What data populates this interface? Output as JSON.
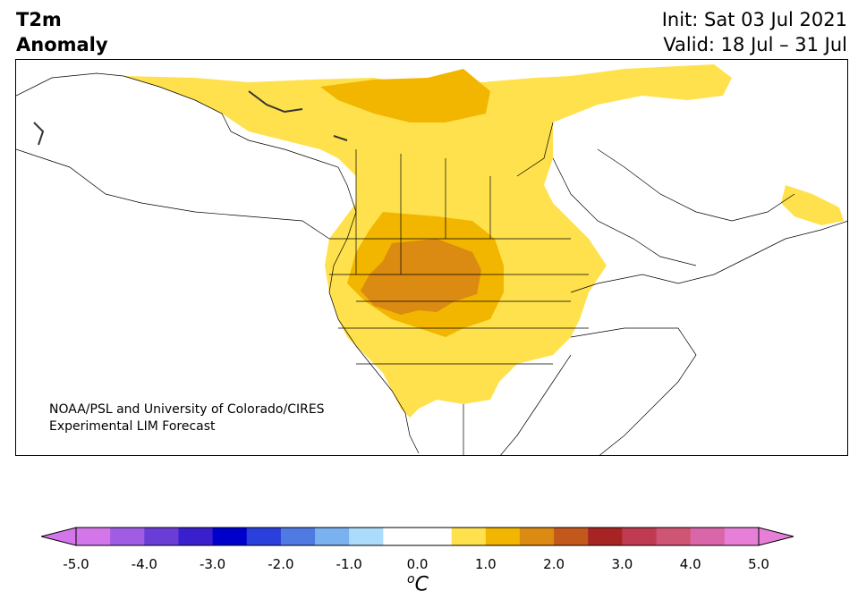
{
  "title": {
    "line1": "T2m",
    "line2": "Anomaly"
  },
  "init": {
    "line1": "Init: Sat 03 Jul 2021",
    "line2": "Valid: 18 Jul – 31 Jul"
  },
  "credit": {
    "line1": "NOAA/PSL and University of Colorado/CIRES",
    "line2": "Experimental LIM Forecast"
  },
  "colorbar": {
    "unit_prefix": "o",
    "unit": "C",
    "ticks": [
      "-5.0",
      "-4.0",
      "-3.0",
      "-2.0",
      "-1.0",
      "0.0",
      "1.0",
      "2.0",
      "3.0",
      "4.0",
      "5.0"
    ],
    "colors": [
      "#d276e9",
      "#a05ce3",
      "#6a3dd6",
      "#3a1fcc",
      "#0000cc",
      "#2a3fdb",
      "#4e7ae2",
      "#79b2ee",
      "#acdcfb",
      "#ffffff",
      "#ffffff",
      "#ffe14d",
      "#f2b500",
      "#db8a12",
      "#c2581c",
      "#a82424",
      "#c03b52",
      "#cf5575",
      "#d966a8",
      "#e77fd8"
    ],
    "under_color": "#d276e9",
    "over_color": "#e77fd8"
  },
  "map": {
    "region": "North America",
    "field": "2m temperature anomaly",
    "colors": {
      "anom_0_5_1": "#ffe14d",
      "anom_1_1_5": "#f2b500",
      "anom_1_5_2": "#db8a12",
      "land": "#ffffff",
      "border": "#000000"
    }
  }
}
